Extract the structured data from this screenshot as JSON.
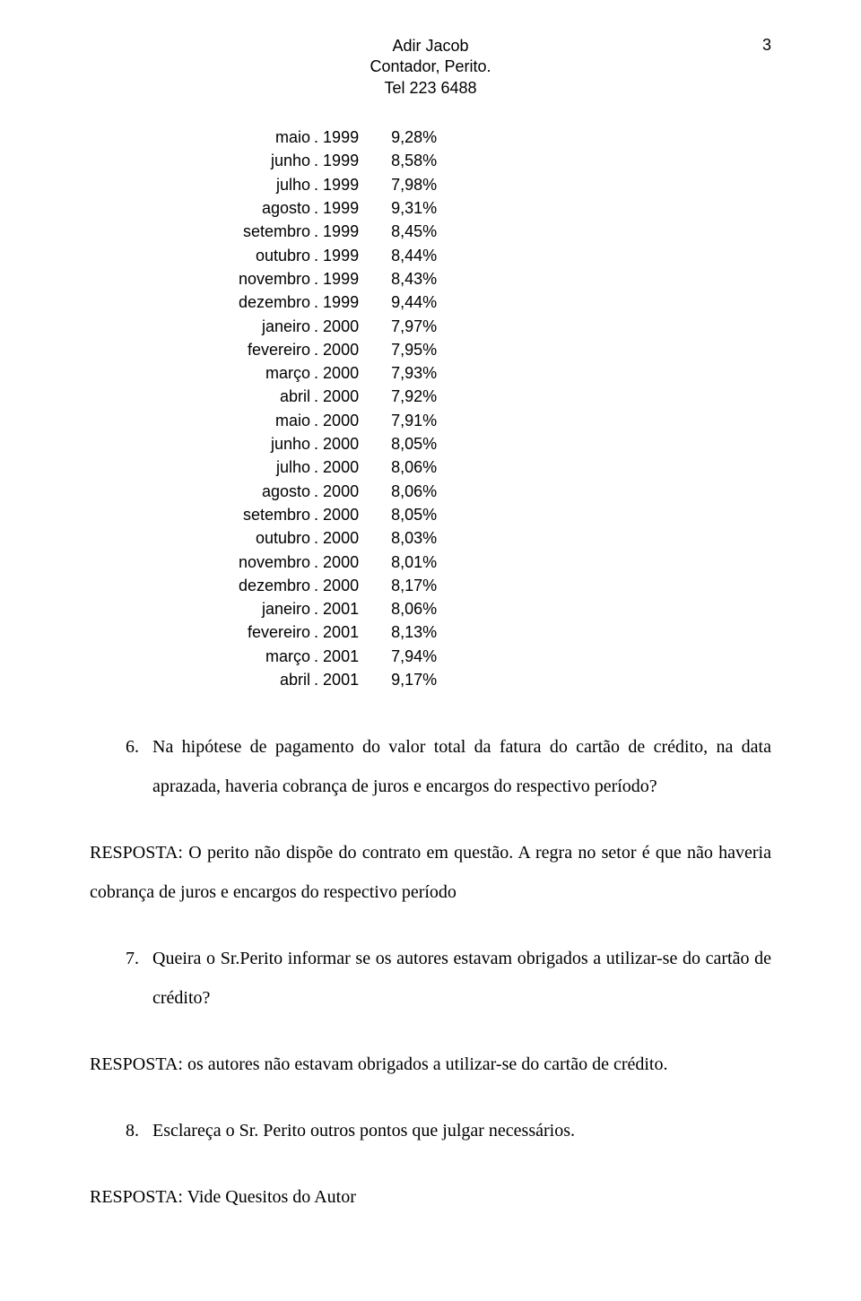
{
  "page_number": "3",
  "header": {
    "name": "Adir Jacob",
    "title": "Contador, Perito.",
    "phone": "Tel 223 6488"
  },
  "rates": [
    {
      "month": "maio",
      "sep": ". ",
      "year": "1999",
      "value": "9,28%"
    },
    {
      "month": "junho",
      "sep": ". ",
      "year": "1999",
      "value": "8,58%"
    },
    {
      "month": "julho",
      "sep": ". ",
      "year": "1999",
      "value": "7,98%"
    },
    {
      "month": "agosto",
      "sep": ". ",
      "year": "1999",
      "value": "9,31%"
    },
    {
      "month": "setembro",
      "sep": ". ",
      "year": "1999",
      "value": "8,45%"
    },
    {
      "month": "outubro",
      "sep": ". ",
      "year": "1999",
      "value": "8,44%"
    },
    {
      "month": "novembro",
      "sep": ". ",
      "year": "1999",
      "value": "8,43%"
    },
    {
      "month": "dezembro",
      "sep": ". ",
      "year": "1999",
      "value": "9,44%"
    },
    {
      "month": "janeiro",
      "sep": ". ",
      "year": "2000",
      "value": "7,97%"
    },
    {
      "month": "fevereiro",
      "sep": ". ",
      "year": "2000",
      "value": "7,95%"
    },
    {
      "month": "março",
      "sep": ". ",
      "year": "2000",
      "value": "7,93%"
    },
    {
      "month": "abril",
      "sep": ". ",
      "year": "2000",
      "value": "7,92%"
    },
    {
      "month": "maio",
      "sep": ". ",
      "year": "2000",
      "value": "7,91%"
    },
    {
      "month": "junho",
      "sep": ". ",
      "year": "2000",
      "value": "8,05%"
    },
    {
      "month": "julho",
      "sep": ". ",
      "year": "2000",
      "value": "8,06%"
    },
    {
      "month": "agosto",
      "sep": ". ",
      "year": "2000",
      "value": "8,06%"
    },
    {
      "month": "setembro",
      "sep": ". ",
      "year": "2000",
      "value": "8,05%"
    },
    {
      "month": "outubro",
      "sep": ". ",
      "year": "2000",
      "value": "8,03%"
    },
    {
      "month": "novembro",
      "sep": ". ",
      "year": "2000",
      "value": "8,01%"
    },
    {
      "month": "dezembro",
      "sep": ". ",
      "year": "2000",
      "value": "8,17%"
    },
    {
      "month": "janeiro",
      "sep": ". ",
      "year": "2001",
      "value": "8,06%"
    },
    {
      "month": "fevereiro",
      "sep": ". ",
      "year": "2001",
      "value": "8,13%"
    },
    {
      "month": "março",
      "sep": ". ",
      "year": "2001",
      "value": "7,94%"
    },
    {
      "month": "abril",
      "sep": ". ",
      "year": "2001",
      "value": "9,17%"
    }
  ],
  "q6": {
    "num": "6.",
    "text": "Na hipótese de pagamento do valor total da fatura do cartão de crédito, na data aprazada, haveria cobrança de juros e encargos do respectivo período?"
  },
  "resp6": "RESPOSTA: O perito não dispõe do contrato em questão. A regra no setor é que não haveria cobrança de juros e encargos do respectivo período",
  "q7": {
    "num": "7.",
    "text": "Queira o Sr.Perito informar se os autores estavam obrigados a utilizar-se do cartão de crédito?"
  },
  "resp7": "RESPOSTA: os autores não estavam obrigados a utilizar-se do cartão de crédito.",
  "q8": {
    "num": "8.",
    "text": "Esclareça o Sr. Perito outros pontos que julgar necessários."
  },
  "resp8": "RESPOSTA: Vide Quesitos do Autor"
}
